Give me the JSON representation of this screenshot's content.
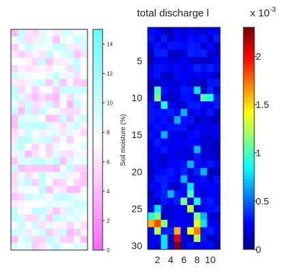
{
  "chart_data": [
    {
      "type": "heatmap",
      "panel": "soil-moisture",
      "rows": 31,
      "cols": 11,
      "colormap": "cool-pink",
      "colorbar": {
        "label": "Soil moisture (%)",
        "ticks": [
          "0",
          "2",
          "4",
          "6",
          "8",
          "10",
          "12",
          "14"
        ],
        "range": [
          0,
          15
        ],
        "colors": {
          "low": "#ff66ff",
          "mid": "#ffffff",
          "high": "#66ffff"
        }
      },
      "notes": "Noisy field mostly near mid-scale"
    },
    {
      "type": "heatmap",
      "panel": "total-discharge",
      "title": "total discharge  l",
      "rows": 30,
      "cols": 11,
      "xticks": [
        "2",
        "4",
        "6",
        "8",
        "10"
      ],
      "yticks": [
        "5",
        "10",
        "15",
        "20",
        "25",
        "30"
      ],
      "colormap": "jet",
      "colorbar": {
        "label": "",
        "ticks": [
          "0",
          "0.5",
          "1",
          "1.5",
          "2"
        ],
        "range": [
          0,
          2.3
        ],
        "exponent_label": "x 10",
        "exponent_power": "-3"
      },
      "notes": "Mostly dark blue background with bright hotspots near rows 25-30"
    }
  ]
}
